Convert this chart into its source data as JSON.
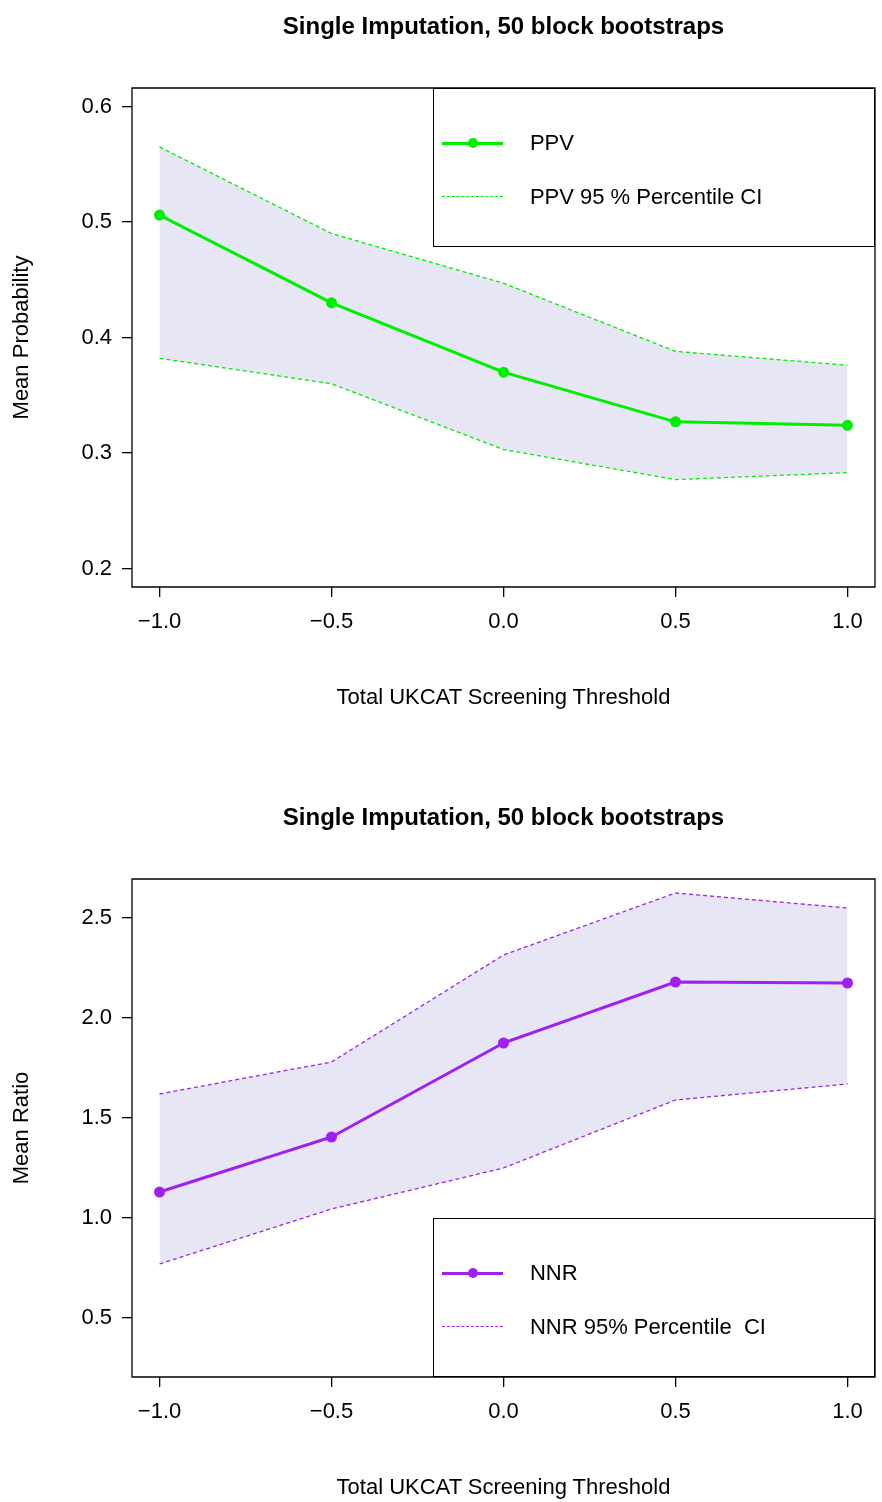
{
  "chart_data": [
    {
      "type": "line",
      "title": "Single Imputation, 50 block bootstraps",
      "xlabel": "Total UKCAT Screening Threshold",
      "ylabel": "Mean Probability",
      "x": [
        -1,
        -0.5,
        0,
        0.5,
        1
      ],
      "xlim": [
        -1.08,
        1.08
      ],
      "xticks": [
        {
          "value": -1,
          "label": "−1.0"
        },
        {
          "value": -0.5,
          "label": "−0.5"
        },
        {
          "value": 0,
          "label": "0.0"
        },
        {
          "value": 0.5,
          "label": "0.5"
        },
        {
          "value": 1,
          "label": "1.0"
        }
      ],
      "ylim": [
        0.184,
        0.616
      ],
      "yticks": [
        0.2,
        0.3,
        0.4,
        0.5,
        0.6
      ],
      "legend": "top right",
      "marker": "circle",
      "grid": false,
      "series": [
        {
          "name": "PPV",
          "color": "#00ee00",
          "values": [
            0.506,
            0.43,
            0.37,
            0.327,
            0.324
          ],
          "lower": [
            0.382,
            0.36,
            0.303,
            0.277,
            0.283
          ],
          "upper": [
            0.565,
            0.49,
            0.447,
            0.388,
            0.376
          ]
        },
        {
          "name": "PPV 95 % Percentile CI",
          "color": "#00ee00",
          "line_style": "dashed",
          "marker": "none",
          "values": [
            0.565,
            0.49,
            0.447,
            0.388,
            0.376
          ]
        },
        {
          "color": "#00ee00",
          "line_style": "dashed",
          "marker": "none",
          "values": [
            0.382,
            0.36,
            0.303,
            0.277,
            0.283
          ]
        }
      ]
    },
    {
      "type": "line",
      "title": "Single Imputation, 50 block bootstraps",
      "xlabel": "Total UKCAT Screening Threshold",
      "ylabel": "Mean Ratio",
      "x": [
        -1,
        -0.5,
        0,
        0.5,
        1
      ],
      "xlim": [
        -1.08,
        1.08
      ],
      "xticks": [
        {
          "value": -1,
          "label": "−1.0"
        },
        {
          "value": -0.5,
          "label": "−0.5"
        },
        {
          "value": 0,
          "label": "0.0"
        },
        {
          "value": 0.5,
          "label": "0.5"
        },
        {
          "value": 1,
          "label": "1.0"
        }
      ],
      "ylim": [
        0.205,
        2.695
      ],
      "yticks": [
        0.5,
        {
          "value": 1,
          "label": "1.0"
        },
        1.5,
        {
          "value": 2,
          "label": "2.0"
        },
        2.5
      ],
      "legend": "bottom right",
      "marker": "circle",
      "grid": false,
      "series": [
        {
          "name": "NNR",
          "color": "#a020f0",
          "values": [
            1.13,
            1.405,
            1.875,
            2.18,
            2.175
          ],
          "lower": [
            0.77,
            1.045,
            1.25,
            1.59,
            1.67
          ],
          "upper": [
            1.62,
            1.78,
            2.315,
            2.625,
            2.55
          ]
        },
        {
          "name": "NNR 95% Percentile  CI",
          "color": "#a020f0",
          "line_style": "dashed",
          "marker": "none",
          "values": [
            1.62,
            1.78,
            2.315,
            2.625,
            2.55
          ]
        },
        {
          "color": "#a020f0",
          "line_style": "dashed",
          "marker": "none",
          "values": [
            0.77,
            1.045,
            1.25,
            1.59,
            1.67
          ]
        }
      ]
    }
  ]
}
